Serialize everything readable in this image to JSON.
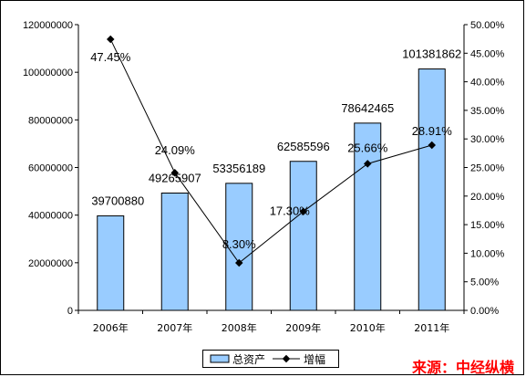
{
  "chart_data": {
    "type": "bar+line",
    "categories": [
      "2006年",
      "2007年",
      "2008年",
      "2009年",
      "2010年",
      "2011年"
    ],
    "series": [
      {
        "name": "总资产",
        "type": "bar",
        "axis": "left",
        "values": [
          39700880,
          49265907,
          53356189,
          62585596,
          78642465,
          101381862
        ],
        "labels": [
          "39700880",
          "49265907",
          "53356189",
          "62585596",
          "78642465",
          "101381862"
        ],
        "color": "#99ccff"
      },
      {
        "name": "增幅",
        "type": "line",
        "axis": "right",
        "values": [
          47.45,
          24.09,
          8.3,
          17.3,
          25.66,
          28.91
        ],
        "labels": [
          "47.45%",
          "24.09%",
          "8.30%",
          "17.30%",
          "25.66%",
          "28.91%"
        ],
        "color": "#000000"
      }
    ],
    "y_left": {
      "lim": [
        0,
        120000000
      ],
      "ticks": [
        "0",
        "20000000",
        "40000000",
        "60000000",
        "80000000",
        "100000000",
        "120000000"
      ]
    },
    "y_right": {
      "lim": [
        0,
        50
      ],
      "ticks": [
        "0.00%",
        "5.00%",
        "10.00%",
        "15.00%",
        "20.00%",
        "25.00%",
        "30.00%",
        "35.00%",
        "40.00%",
        "45.00%",
        "50.00%"
      ]
    },
    "grid": false,
    "legend_position": "bottom"
  },
  "source": "来源：中经纵横"
}
